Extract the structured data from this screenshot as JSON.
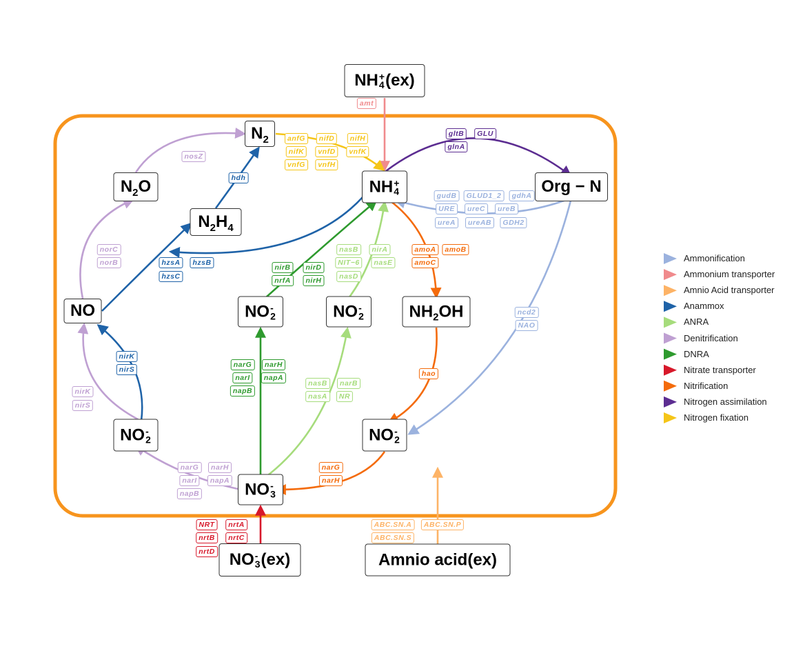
{
  "nodes": [
    [
      {
        "text": "NH"
      },
      {
        "sub": "4",
        "sup": "+"
      },
      {
        "text": "(ex)"
      }
    ],
    [
      {
        "text": "N"
      },
      {
        "sub": "2"
      }
    ],
    [
      {
        "text": "NH"
      },
      {
        "sub": "4",
        "sup": "+"
      }
    ],
    [
      {
        "text": "Org − N"
      }
    ],
    [
      {
        "text": "N"
      },
      {
        "sub": "2"
      },
      {
        "text": "O"
      }
    ],
    [
      {
        "text": "N"
      },
      {
        "sub": "2"
      },
      {
        "text": "H"
      },
      {
        "sub": "4"
      }
    ],
    [
      {
        "text": "NO"
      }
    ],
    [
      {
        "text": "NO"
      },
      {
        "sub": "2",
        "sup": "-"
      }
    ],
    [
      {
        "text": "NO"
      },
      {
        "sub": "2",
        "sup": "-"
      }
    ],
    [
      {
        "text": "NH"
      },
      {
        "sub": "2"
      },
      {
        "text": "OH"
      }
    ],
    [
      {
        "text": "NO"
      },
      {
        "sub": "2",
        "sup": "-"
      }
    ],
    [
      {
        "text": "NO"
      },
      {
        "sub": "2",
        "sup": "-"
      }
    ],
    [
      {
        "text": "NO"
      },
      {
        "sub": "3",
        "sup": "-"
      }
    ],
    [
      {
        "text": "NO"
      },
      {
        "sub": "3",
        "sup": "-"
      },
      {
        "text": "(ex)"
      }
    ],
    [
      {
        "text": "Amnio acid(ex)"
      }
    ]
  ],
  "gene_groups": [
    [
      "amt"
    ],
    [
      "anfG",
      "nifD",
      "nifH",
      "nifK",
      "vnfD",
      "vnfK",
      "vnfG",
      "vnfH"
    ],
    [
      "gltB",
      "GLU",
      "glnA"
    ],
    [
      "gudB",
      "GLUD1_2",
      "gdhA",
      "URE",
      "ureC",
      "ureB",
      "ureA",
      "ureAB",
      "GDH2"
    ],
    [
      "nosZ"
    ],
    [
      "hdh"
    ],
    [
      "norC",
      "norB"
    ],
    [
      "hzsA",
      "hzsB",
      "hzsC"
    ],
    [
      "nirB",
      "nirD",
      "nrfA",
      "nirH"
    ],
    [
      "nasB",
      "nirA",
      "NIT−6",
      "nasE",
      "nasD"
    ],
    [
      "amoA",
      "amoB",
      "amoC"
    ],
    [
      "ncd2",
      "NAO"
    ],
    [
      "nirK",
      "nirS"
    ],
    [
      "nirK",
      "nirS"
    ],
    [
      "narG",
      "narH",
      "narI",
      "napA",
      "napB"
    ],
    [
      "nasB",
      "narB",
      "nasA",
      "NR"
    ],
    [
      "hao"
    ],
    [
      "narG",
      "narH",
      "narI",
      "napA",
      "napB"
    ],
    [
      "narG",
      "narH"
    ],
    [
      "NRT",
      "nrtA",
      "nrtB",
      "nrtC",
      "nrtD"
    ],
    [
      "ABC.SN.A",
      "ABC.SN.P",
      "ABC.SN.S"
    ]
  ],
  "legend": [
    {
      "name": "Ammonification",
      "color": "#9bb2de"
    },
    {
      "name": "Ammonium transporter",
      "color": "#f08a8c"
    },
    {
      "name": "Amnio Acid transporter",
      "color": "#fdb366"
    },
    {
      "name": "Anammox",
      "color": "#1f63a8"
    },
    {
      "name": "ANRA",
      "color": "#a6dc7c"
    },
    {
      "name": "Denitrification",
      "color": "#bfa0d2"
    },
    {
      "name": "DNRA",
      "color": "#2e9a2e"
    },
    {
      "name": "Nitrate transporter",
      "color": "#d7182a"
    },
    {
      "name": "Nitrification",
      "color": "#f46b0b"
    },
    {
      "name": "Nitrogen assimilation",
      "color": "#5c2d91"
    },
    {
      "name": "Nitrogen fixation",
      "color": "#f5c518"
    }
  ]
}
